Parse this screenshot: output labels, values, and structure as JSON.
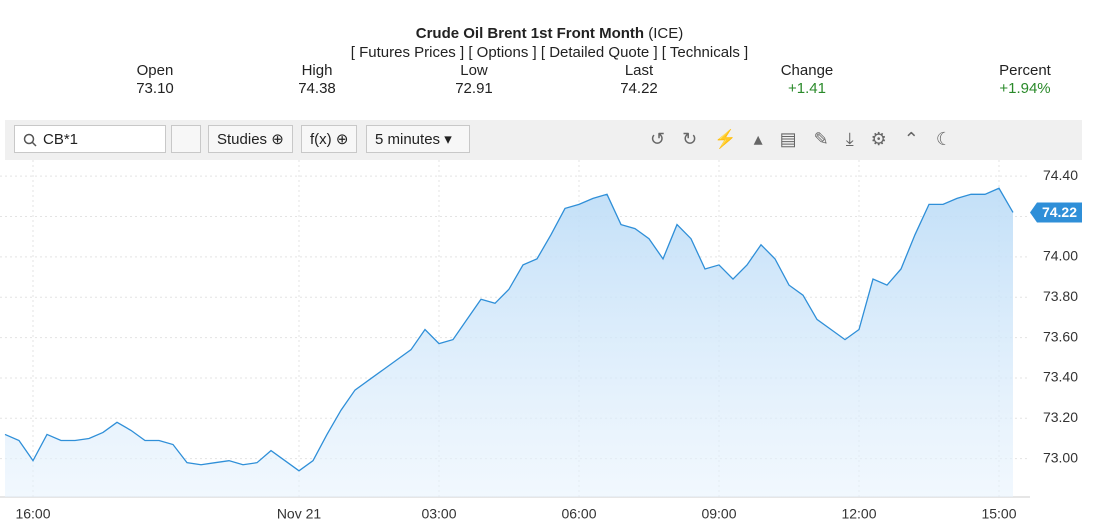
{
  "header": {
    "title": "Crude Oil Brent 1st Front Month",
    "exchange": "(ICE)",
    "links": [
      "[ Futures Prices ]",
      "[ Options ]",
      "[ Detailed Quote ]",
      "[ Technicals ]"
    ]
  },
  "quote": [
    {
      "label": "Open",
      "value": "73.10"
    },
    {
      "label": "High",
      "value": "74.38"
    },
    {
      "label": "Low",
      "value": "72.91"
    },
    {
      "label": "Last",
      "value": "74.22"
    },
    {
      "label": "Change",
      "value": "+1.41"
    },
    {
      "label": "Percent",
      "value": "+1.94%"
    }
  ],
  "toolbar": {
    "symbol": "CB*1",
    "studies": "Studies",
    "fx": "f(x)",
    "interval": "5 minutes"
  },
  "chart_data": {
    "type": "area",
    "color": "#2f8fd8",
    "grid": true,
    "categories": [
      null,
      null,
      "16:00",
      null,
      null,
      null,
      null,
      null,
      null,
      null,
      null,
      null,
      null,
      null,
      null,
      null,
      null,
      null,
      null,
      null,
      null,
      "Nov 21",
      null,
      null,
      null,
      null,
      null,
      null,
      null,
      null,
      null,
      "03:00",
      null,
      null,
      null,
      null,
      null,
      null,
      null,
      null,
      null,
      "06:00",
      null,
      null,
      null,
      null,
      null,
      null,
      null,
      null,
      null,
      "09:00",
      null,
      null,
      null,
      null,
      null,
      null,
      null,
      null,
      null,
      "12:00",
      null,
      null,
      null,
      null,
      null,
      null,
      null,
      null,
      null,
      "15:00",
      null
    ],
    "values": [
      73.12,
      73.09,
      72.99,
      73.12,
      73.09,
      73.09,
      73.1,
      73.13,
      73.18,
      73.14,
      73.09,
      73.09,
      73.07,
      72.98,
      72.97,
      72.98,
      72.99,
      72.97,
      72.98,
      73.04,
      72.99,
      72.94,
      72.99,
      73.12,
      73.24,
      73.34,
      73.39,
      73.44,
      73.49,
      73.54,
      73.64,
      73.57,
      73.59,
      73.69,
      73.79,
      73.77,
      73.84,
      73.96,
      73.99,
      74.11,
      74.24,
      74.26,
      74.29,
      74.31,
      74.16,
      74.14,
      74.09,
      73.99,
      74.16,
      74.09,
      73.94,
      73.96,
      73.89,
      73.96,
      74.06,
      73.99,
      73.86,
      73.81,
      73.69,
      73.64,
      73.59,
      73.64,
      73.89,
      73.86,
      73.94,
      74.11,
      74.26,
      74.26,
      74.29,
      74.31,
      74.31,
      74.34,
      74.22
    ],
    "ylim": [
      72.81,
      74.48
    ],
    "yticks": [
      {
        "value": 73,
        "label": "73.00"
      },
      {
        "value": 73.2,
        "label": "73.20"
      },
      {
        "value": 73.4,
        "label": "73.40"
      },
      {
        "value": 73.6,
        "label": "73.60"
      },
      {
        "value": 73.8,
        "label": "73.80"
      },
      {
        "value": 74,
        "label": "74.00"
      },
      {
        "value": 74.2,
        "label": "74.20"
      },
      {
        "value": 74.4,
        "label": "74.40"
      }
    ]
  }
}
